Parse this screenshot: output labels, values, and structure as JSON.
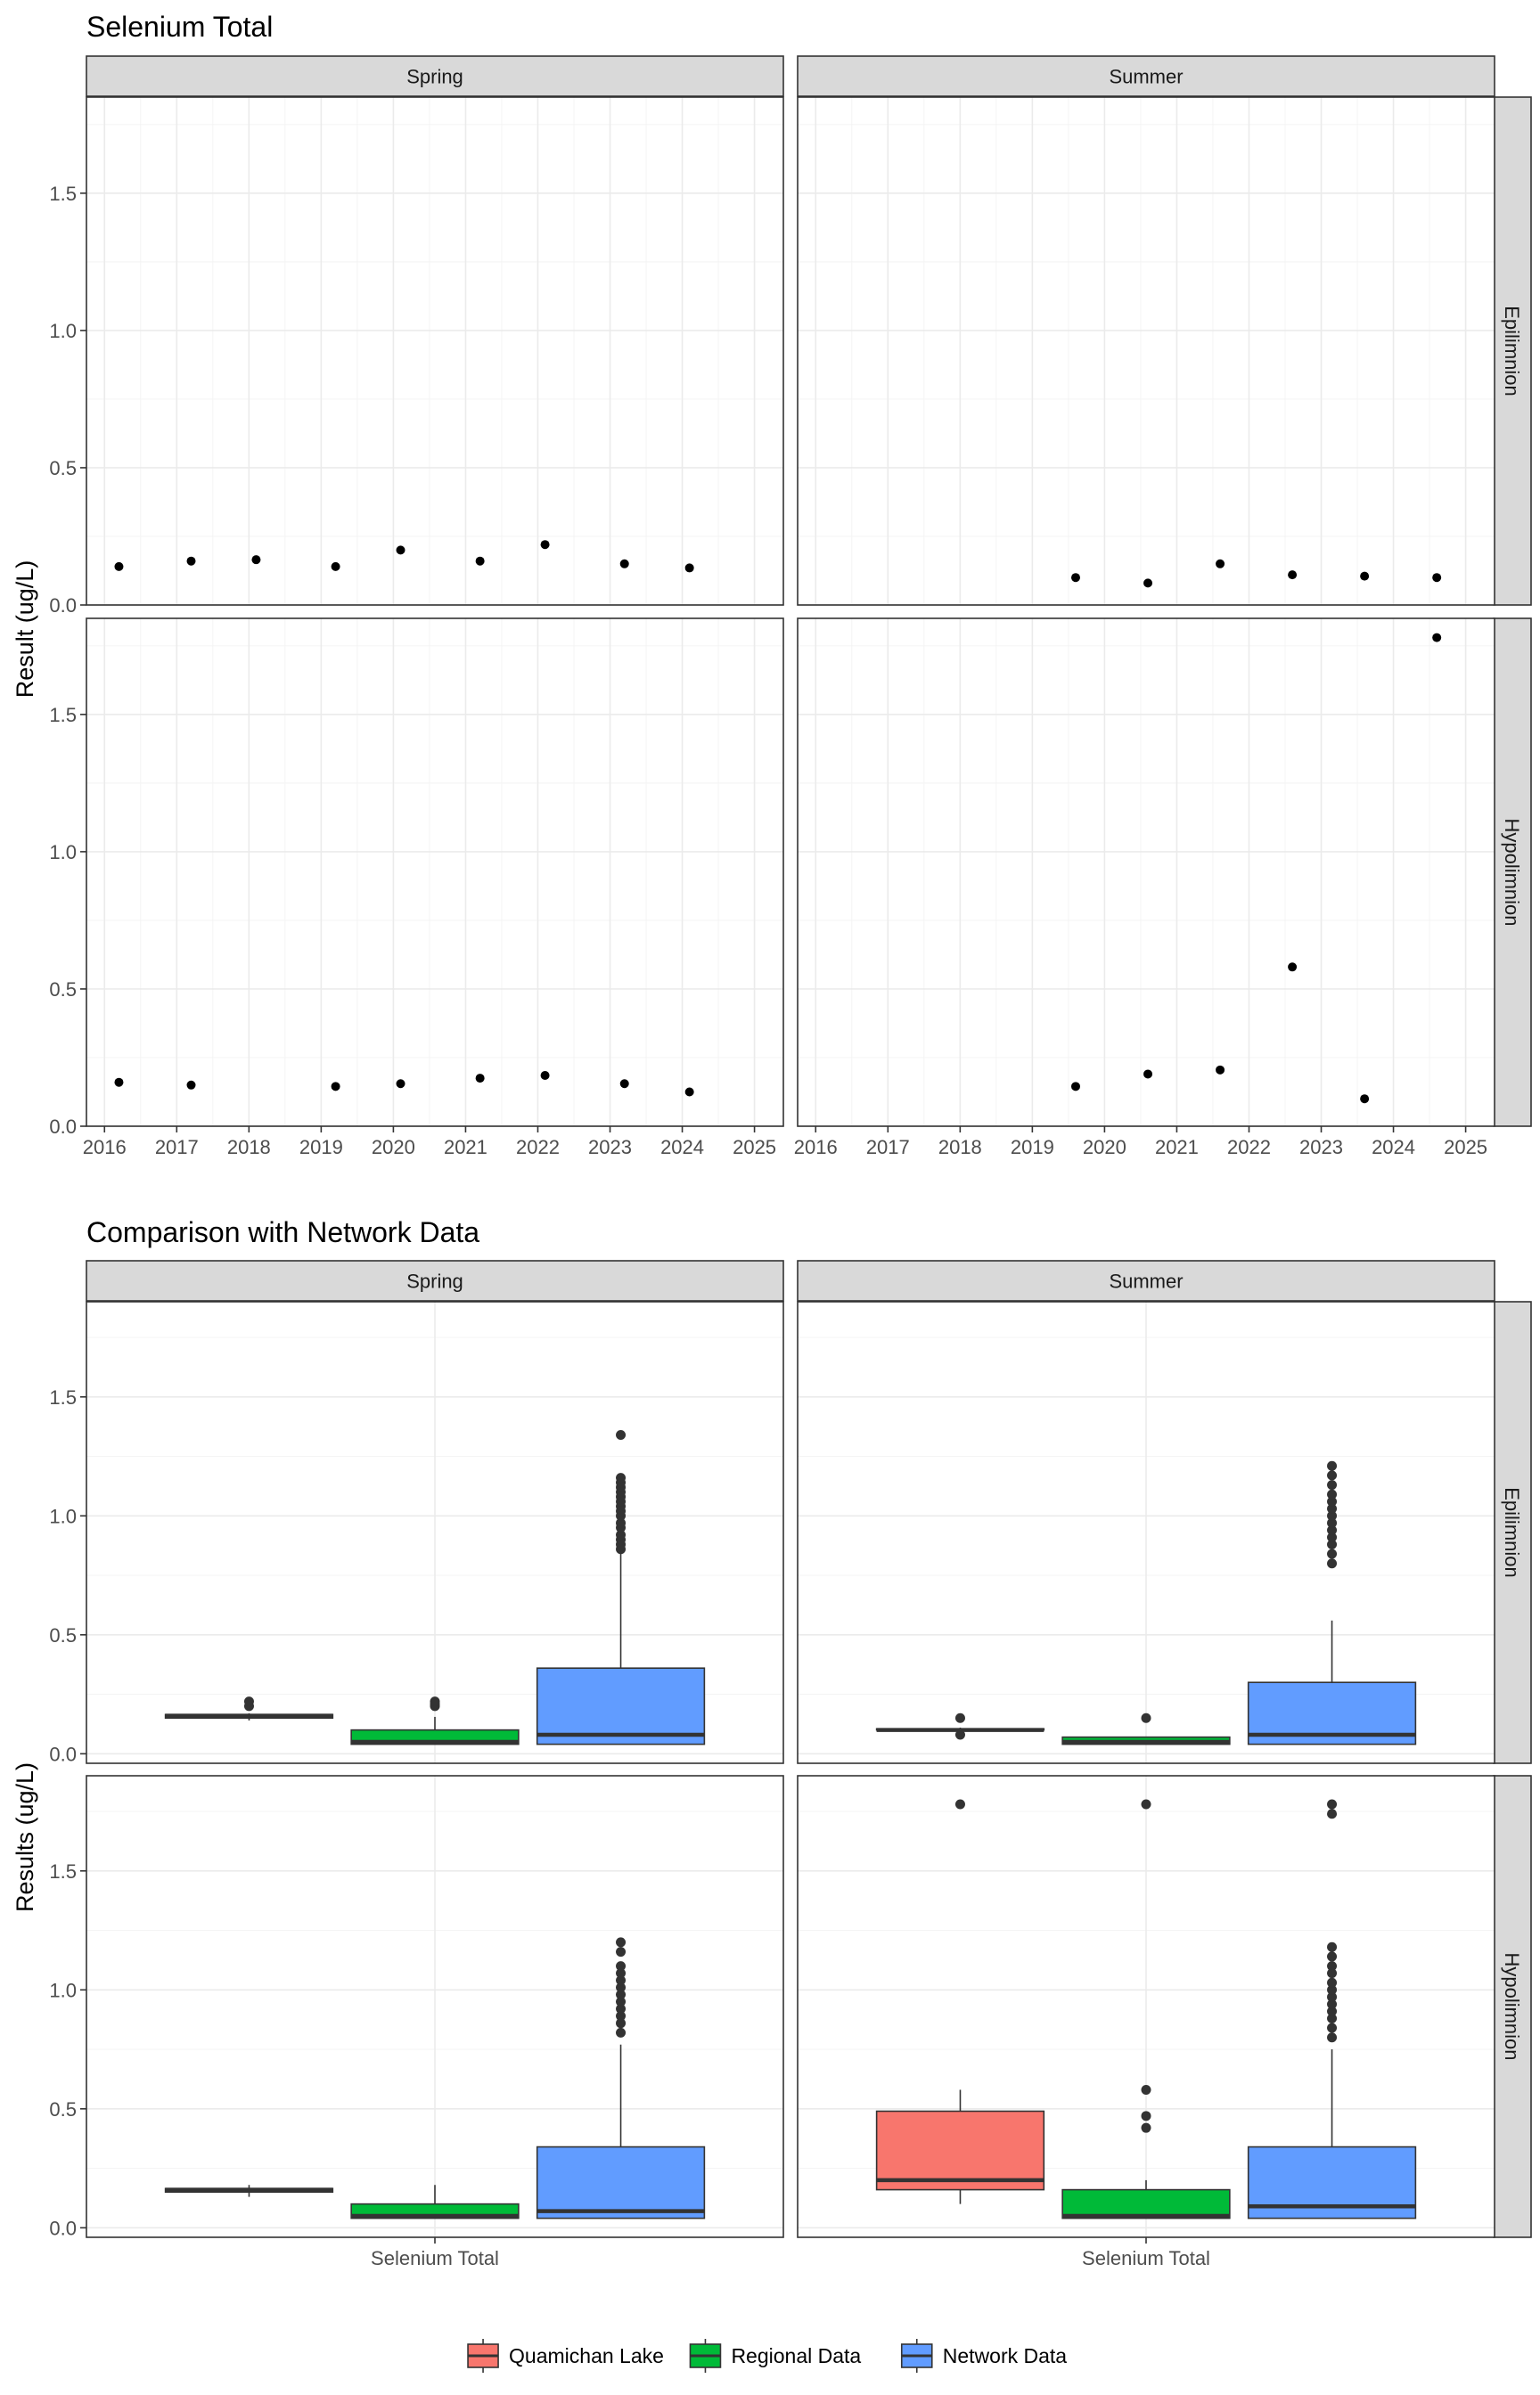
{
  "top_title": "Selenium Total",
  "bottom_title": "Comparison with Network Data",
  "columns": [
    "Spring",
    "Summer"
  ],
  "rows": [
    "Epilimnion",
    "Hypolimnion"
  ],
  "top_ylabel": "Result (ug/L)",
  "bottom_ylabel": "Results (ug/L)",
  "bottom_xtick": "Selenium Total",
  "colors": {
    "quamichan": "#F8766D",
    "regional": "#00BA38",
    "network": "#619CFF"
  },
  "legend": [
    {
      "label": "Quamichan Lake",
      "color": "#F8766D"
    },
    {
      "label": "Regional Data",
      "color": "#00BA38"
    },
    {
      "label": "Network Data",
      "color": "#619CFF"
    }
  ],
  "chart_data": [
    {
      "type": "scatter",
      "title": "Selenium Total",
      "xlabel": "",
      "ylabel": "Result (ug/L)",
      "facet_columns": [
        "Spring",
        "Summer"
      ],
      "facet_rows": [
        "Epilimnion",
        "Hypolimnion"
      ],
      "xlim": [
        2015.75,
        2025.4
      ],
      "ylim": [
        0,
        1.85
      ],
      "x_ticks": [
        2016,
        2017,
        2018,
        2019,
        2020,
        2021,
        2022,
        2023,
        2024,
        2025
      ],
      "y_ticks": [
        0.0,
        0.5,
        1.0,
        1.5
      ],
      "y_tick_labels": [
        "0.0",
        "0.5",
        "1.0",
        "1.5"
      ],
      "grid": true,
      "panels": [
        {
          "column": "Spring",
          "row": "Epilimnion",
          "x": [
            2016.2,
            2017.2,
            2018.1,
            2019.2,
            2020.1,
            2021.2,
            2022.1,
            2023.2,
            2024.1
          ],
          "y": [
            0.14,
            0.16,
            0.165,
            0.14,
            0.2,
            0.16,
            0.22,
            0.15,
            0.135
          ]
        },
        {
          "column": "Summer",
          "row": "Epilimnion",
          "x": [
            2019.6,
            2020.6,
            2021.6,
            2022.6,
            2023.6,
            2024.6
          ],
          "y": [
            0.1,
            0.08,
            0.15,
            0.11,
            0.105,
            0.1
          ]
        },
        {
          "column": "Spring",
          "row": "Hypolimnion",
          "x": [
            2016.2,
            2017.2,
            2019.2,
            2020.1,
            2021.2,
            2022.1,
            2023.2,
            2024.1
          ],
          "y": [
            0.16,
            0.15,
            0.145,
            0.155,
            0.175,
            0.185,
            0.155,
            0.125
          ]
        },
        {
          "column": "Summer",
          "row": "Hypolimnion",
          "x": [
            2019.6,
            2020.6,
            2021.6,
            2022.6,
            2023.6,
            2024.6
          ],
          "y": [
            0.145,
            0.19,
            0.205,
            0.58,
            0.1,
            1.78
          ]
        }
      ]
    },
    {
      "type": "box",
      "title": "Comparison with Network Data",
      "xlabel": "",
      "ylabel": "Results (ug/L)",
      "categories": [
        "Selenium Total"
      ],
      "facet_columns": [
        "Spring",
        "Summer"
      ],
      "facet_rows": [
        "Epilimnion",
        "Hypolimnion"
      ],
      "ylim": [
        -0.04,
        1.9
      ],
      "y_ticks": [
        0.0,
        0.5,
        1.0,
        1.5
      ],
      "y_tick_labels": [
        "0.0",
        "0.5",
        "1.0",
        "1.5"
      ],
      "legend_position": "bottom",
      "series": [
        {
          "name": "Quamichan Lake",
          "color": "#F8766D"
        },
        {
          "name": "Regional Data",
          "color": "#00BA38"
        },
        {
          "name": "Network Data",
          "color": "#619CFF"
        }
      ],
      "panels": [
        {
          "column": "Spring",
          "row": "Epilimnion",
          "boxes": [
            {
              "series": "Quamichan Lake",
              "whisker_low": 0.14,
              "q1": 0.15,
              "median": 0.16,
              "q3": 0.165,
              "whisker_high": 0.17,
              "outliers": [
                0.2,
                0.22
              ]
            },
            {
              "series": "Regional Data",
              "whisker_low": 0.04,
              "q1": 0.04,
              "median": 0.05,
              "q3": 0.1,
              "whisker_high": 0.155,
              "outliers": [
                0.2,
                0.21,
                0.22
              ]
            },
            {
              "series": "Network Data",
              "whisker_low": 0.04,
              "q1": 0.04,
              "median": 0.08,
              "q3": 0.36,
              "whisker_high": 0.84,
              "outliers": [
                0.86,
                0.88,
                0.9,
                0.92,
                0.95,
                0.97,
                1.0,
                1.02,
                1.04,
                1.06,
                1.08,
                1.1,
                1.12,
                1.14,
                1.16,
                1.34
              ]
            }
          ]
        },
        {
          "column": "Summer",
          "row": "Epilimnion",
          "boxes": [
            {
              "series": "Quamichan Lake",
              "whisker_low": 0.1,
              "q1": 0.1,
              "median": 0.1,
              "q3": 0.105,
              "whisker_high": 0.11,
              "outliers": [
                0.08,
                0.15
              ]
            },
            {
              "series": "Regional Data",
              "whisker_low": 0.04,
              "q1": 0.04,
              "median": 0.05,
              "q3": 0.07,
              "whisker_high": 0.07,
              "outliers": [
                0.15
              ]
            },
            {
              "series": "Network Data",
              "whisker_low": 0.04,
              "q1": 0.04,
              "median": 0.08,
              "q3": 0.3,
              "whisker_high": 0.56,
              "outliers": [
                0.8,
                0.84,
                0.88,
                0.91,
                0.94,
                0.97,
                1.0,
                1.03,
                1.06,
                1.09,
                1.13,
                1.17,
                1.21
              ]
            }
          ]
        },
        {
          "column": "Spring",
          "row": "Hypolimnion",
          "boxes": [
            {
              "series": "Quamichan Lake",
              "whisker_low": 0.13,
              "q1": 0.15,
              "median": 0.16,
              "q3": 0.165,
              "whisker_high": 0.18,
              "outliers": []
            },
            {
              "series": "Regional Data",
              "whisker_low": 0.04,
              "q1": 0.04,
              "median": 0.05,
              "q3": 0.1,
              "whisker_high": 0.18,
              "outliers": []
            },
            {
              "series": "Network Data",
              "whisker_low": 0.04,
              "q1": 0.04,
              "median": 0.07,
              "q3": 0.34,
              "whisker_high": 0.77,
              "outliers": [
                0.82,
                0.86,
                0.89,
                0.92,
                0.95,
                0.98,
                1.01,
                1.04,
                1.07,
                1.1,
                1.16,
                1.2
              ]
            }
          ]
        },
        {
          "column": "Summer",
          "row": "Hypolimnion",
          "boxes": [
            {
              "series": "Quamichan Lake",
              "whisker_low": 0.1,
              "q1": 0.16,
              "median": 0.2,
              "q3": 0.49,
              "whisker_high": 0.58,
              "outliers": [
                1.78
              ]
            },
            {
              "series": "Regional Data",
              "whisker_low": 0.04,
              "q1": 0.04,
              "median": 0.05,
              "q3": 0.16,
              "whisker_high": 0.2,
              "outliers": [
                0.42,
                0.47,
                0.58,
                1.78
              ]
            },
            {
              "series": "Network Data",
              "whisker_low": 0.04,
              "q1": 0.04,
              "median": 0.09,
              "q3": 0.34,
              "whisker_high": 0.75,
              "outliers": [
                0.8,
                0.84,
                0.88,
                0.91,
                0.94,
                0.97,
                1.0,
                1.03,
                1.07,
                1.1,
                1.14,
                1.18,
                1.74,
                1.78
              ]
            }
          ]
        }
      ]
    }
  ]
}
